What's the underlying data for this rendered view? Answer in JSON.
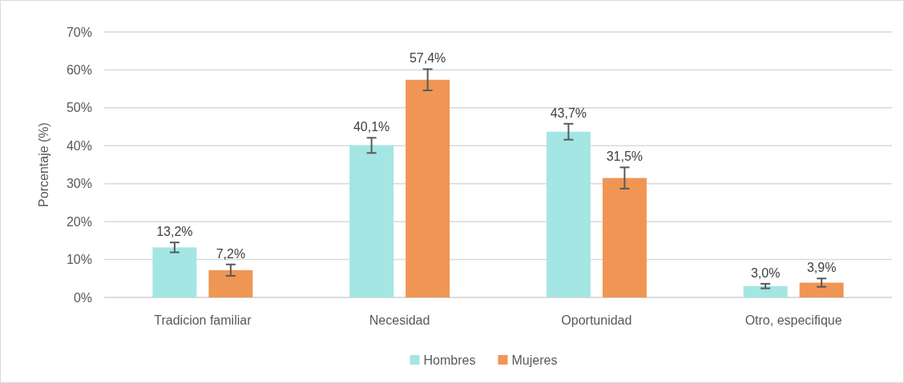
{
  "chart_data": {
    "type": "bar",
    "ylabel": "Porcentaje (%)",
    "categories": [
      "Tradicion familiar",
      "Necesidad",
      "Oportunidad",
      "Otro, especifique"
    ],
    "series": [
      {
        "name": "Hombres",
        "color": "#a3e6e3",
        "values": [
          13.2,
          40.1,
          43.7,
          3.0
        ],
        "errors": [
          1.3,
          2.0,
          2.1,
          0.6
        ],
        "value_labels": [
          "13,2%",
          "40,1%",
          "43,7%",
          "3,0%"
        ]
      },
      {
        "name": "Mujeres",
        "color": "#f09654",
        "values": [
          7.2,
          57.4,
          31.5,
          3.9
        ],
        "errors": [
          1.5,
          2.8,
          2.8,
          1.1
        ],
        "value_labels": [
          "7,2%",
          "57,4%",
          "31,5%",
          "3,9%"
        ]
      }
    ],
    "ylim": [
      0,
      70
    ],
    "yticks": [
      {
        "value": 0,
        "label": "0%"
      },
      {
        "value": 10,
        "label": "10%"
      },
      {
        "value": 20,
        "label": "20%"
      },
      {
        "value": 30,
        "label": "30%"
      },
      {
        "value": 40,
        "label": "40%"
      },
      {
        "value": 50,
        "label": "50%"
      },
      {
        "value": 60,
        "label": "60%"
      },
      {
        "value": 70,
        "label": "70%"
      }
    ],
    "grid": "y",
    "legend": "bottom"
  }
}
